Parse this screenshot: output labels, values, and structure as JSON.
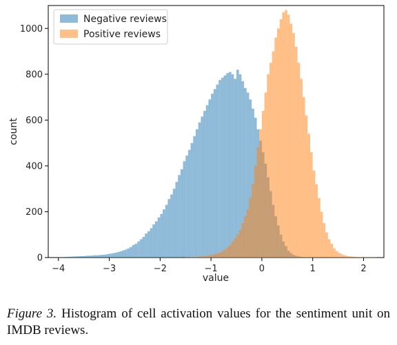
{
  "caption": {
    "figure_label": "Figure 3.",
    "text": "Histogram of cell activation values for the sentiment unit on IMDB reviews."
  },
  "chart_data": {
    "type": "histogram",
    "xlabel": "value",
    "ylabel": "count",
    "xlim": [
      -4.2,
      2.4
    ],
    "ylim": [
      0,
      1100
    ],
    "xticks": [
      -4,
      -3,
      -2,
      -1,
      0,
      1,
      2
    ],
    "xtick_labels": [
      "−4",
      "−3",
      "−2",
      "−1",
      "0",
      "1",
      "2"
    ],
    "yticks": [
      0,
      200,
      400,
      600,
      800,
      1000
    ],
    "ytick_labels": [
      "0",
      "200",
      "400",
      "600",
      "800",
      "1000"
    ],
    "legend": {
      "position": "top-left",
      "entries": [
        "Negative reviews",
        "Positive reviews"
      ]
    },
    "series": [
      {
        "name": "Negative reviews",
        "color": "#1f77b4",
        "opacity": 0.5,
        "bin_start": -4.0,
        "bin_width": 0.05,
        "counts": [
          2,
          2,
          3,
          3,
          4,
          4,
          5,
          5,
          6,
          6,
          7,
          8,
          8,
          9,
          10,
          10,
          11,
          12,
          13,
          15,
          17,
          19,
          21,
          24,
          27,
          31,
          35,
          40,
          46,
          55,
          60,
          70,
          80,
          90,
          105,
          115,
          128,
          145,
          158,
          175,
          190,
          210,
          230,
          255,
          275,
          300,
          330,
          360,
          385,
          420,
          445,
          470,
          500,
          530,
          560,
          590,
          615,
          640,
          665,
          690,
          715,
          735,
          755,
          775,
          785,
          795,
          805,
          810,
          800,
          780,
          820,
          800,
          770,
          740,
          720,
          690,
          650,
          610,
          560,
          510,
          460,
          410,
          350,
          290,
          230,
          180,
          140,
          100,
          70,
          50,
          30,
          20,
          12,
          8,
          5,
          3,
          2,
          1,
          1,
          1
        ]
      },
      {
        "name": "Positive reviews",
        "color": "#ff7f0e",
        "opacity": 0.5,
        "bin_start": -1.5,
        "bin_width": 0.05,
        "counts": [
          1,
          1,
          2,
          2,
          3,
          4,
          5,
          6,
          8,
          10,
          12,
          15,
          18,
          22,
          28,
          35,
          45,
          55,
          70,
          85,
          100,
          120,
          150,
          180,
          210,
          260,
          320,
          400,
          480,
          560,
          640,
          720,
          800,
          850,
          900,
          960,
          1000,
          1040,
          1070,
          1080,
          1060,
          1020,
          980,
          920,
          850,
          780,
          700,
          620,
          540,
          460,
          380,
          320,
          260,
          200,
          150,
          110,
          80,
          60,
          40,
          28,
          20,
          14,
          10,
          7,
          5,
          4,
          3,
          2,
          2,
          1,
          1,
          1,
          1,
          1,
          1
        ]
      }
    ]
  }
}
